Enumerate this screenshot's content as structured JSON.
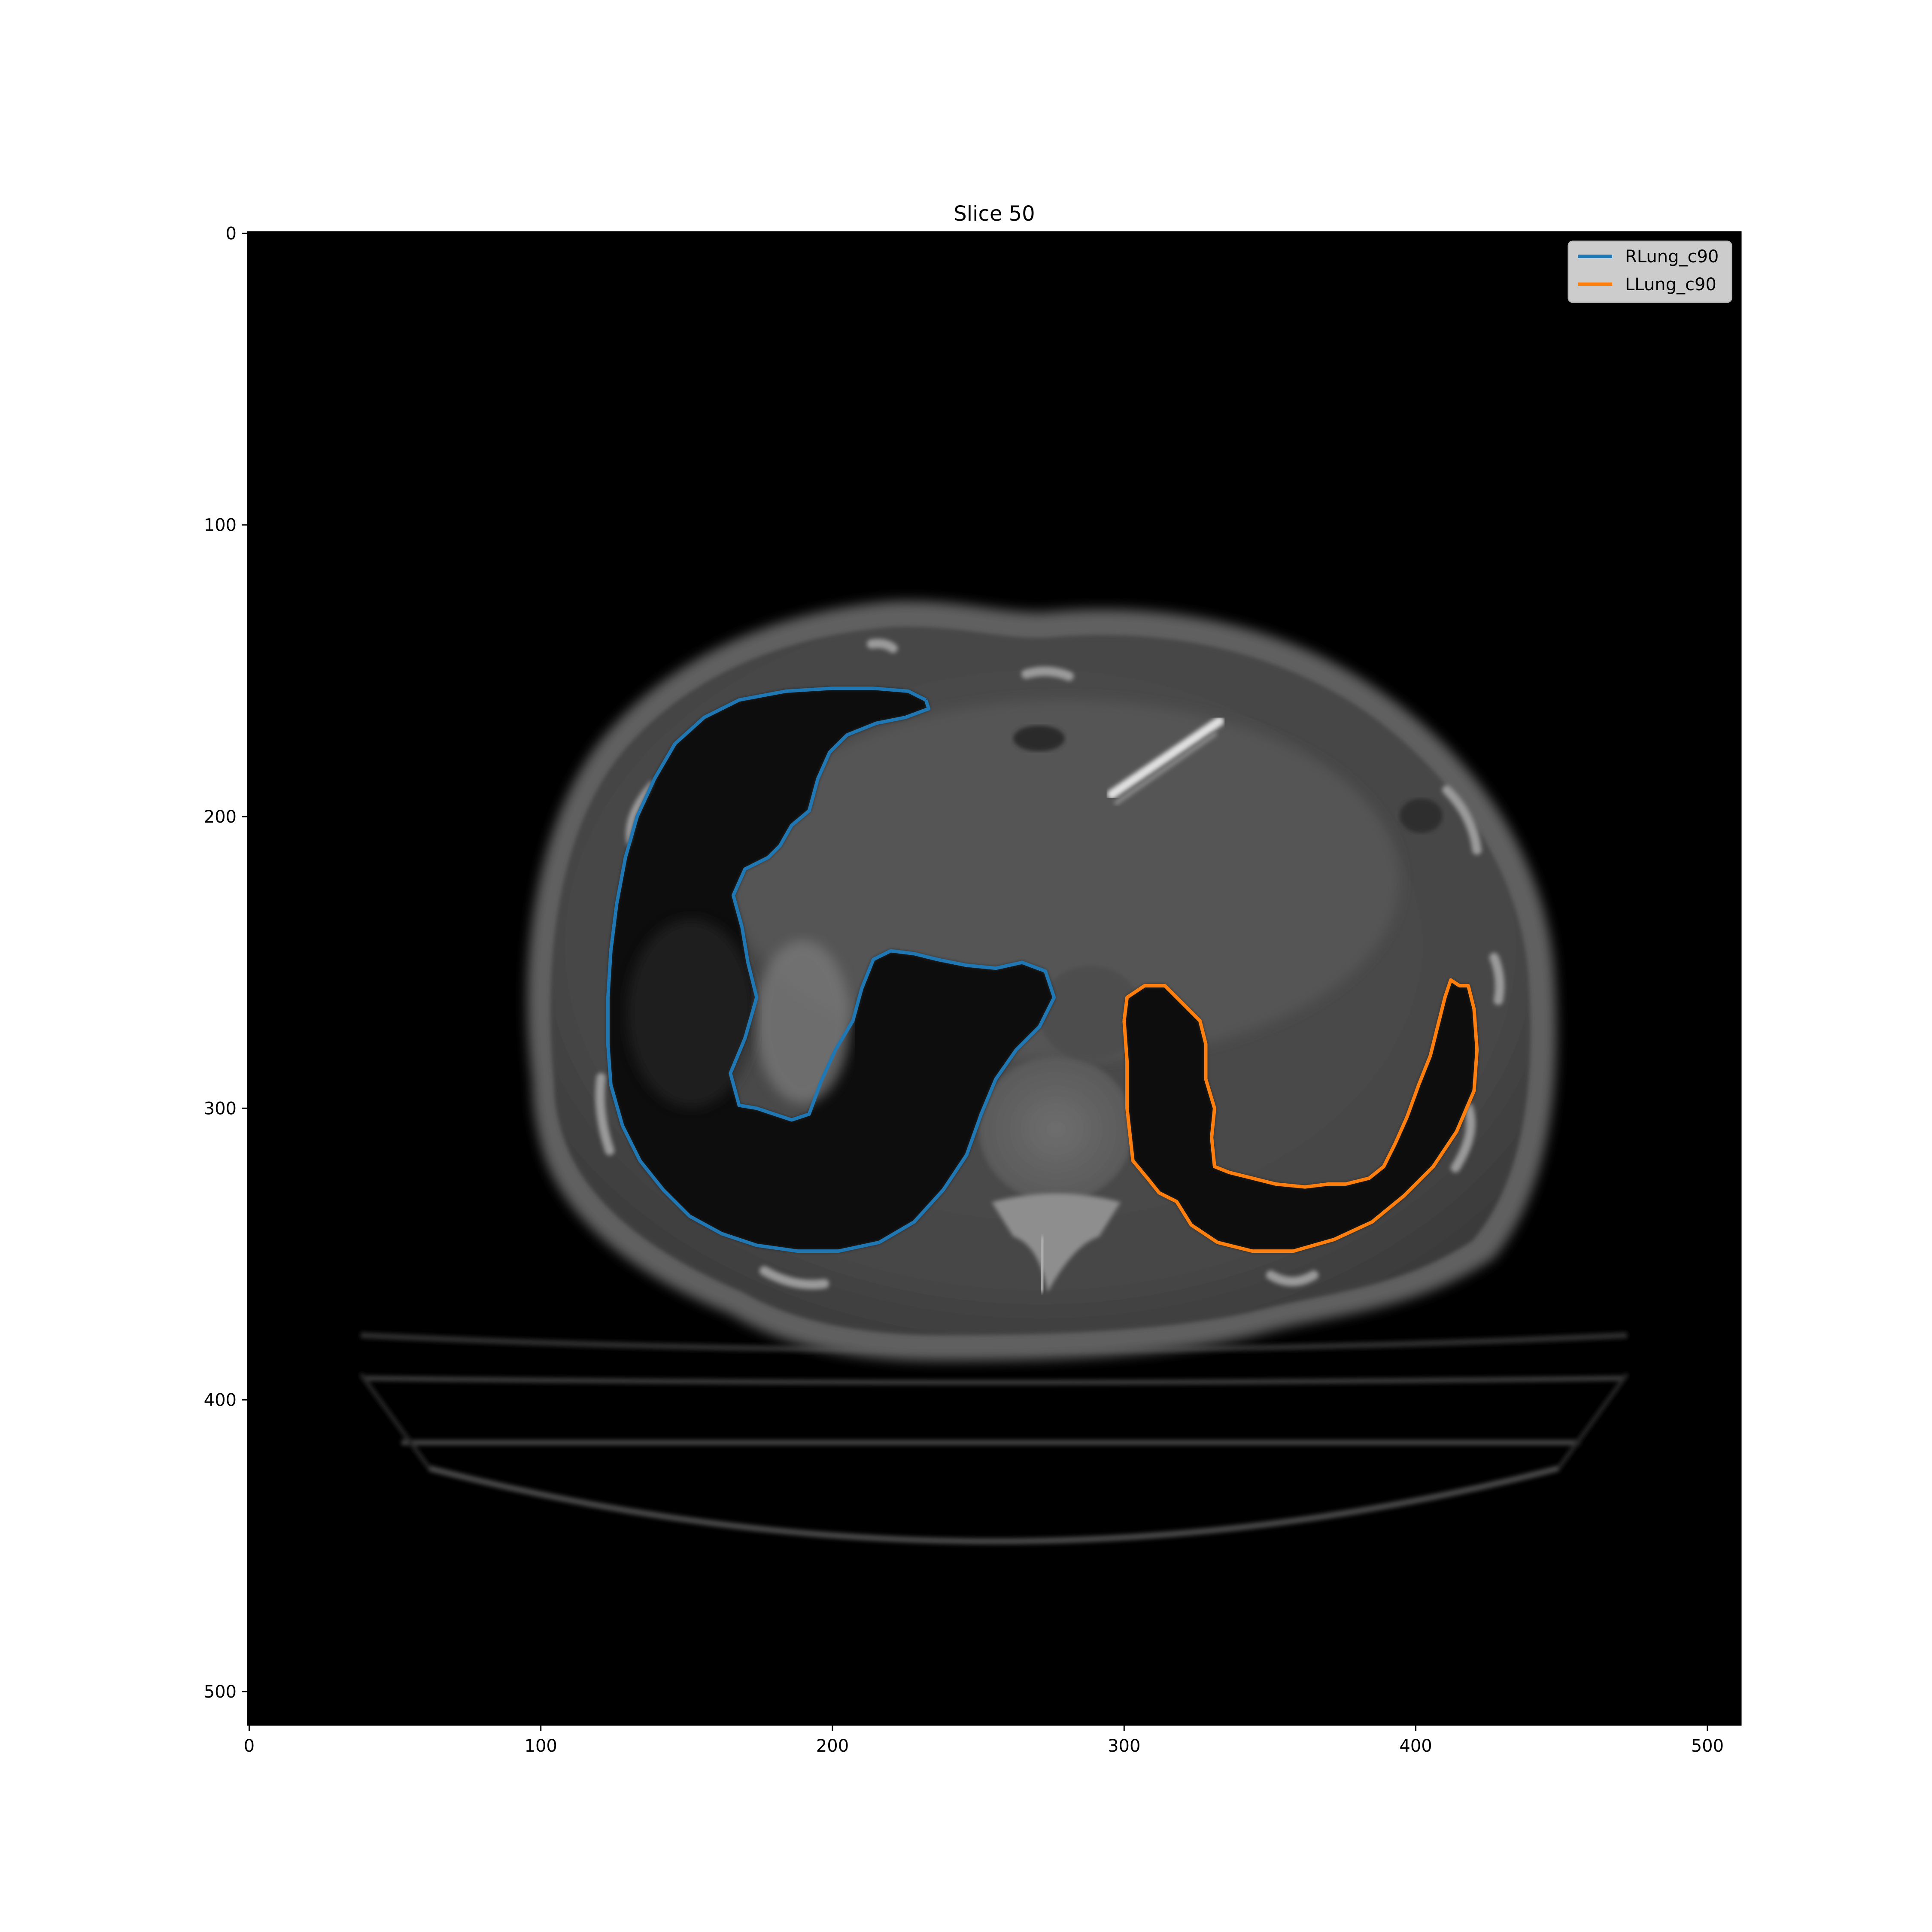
{
  "figure": {
    "title": "Slice 50",
    "image_size": 512,
    "x_ticks": [
      "0",
      "100",
      "200",
      "300",
      "400",
      "500"
    ],
    "y_ticks": [
      "0",
      "100",
      "200",
      "300",
      "400",
      "500"
    ],
    "x_tick_values": [
      0,
      100,
      200,
      300,
      400,
      500
    ],
    "y_tick_values": [
      0,
      100,
      200,
      300,
      400,
      500
    ]
  },
  "legend": {
    "placement": "upper right",
    "items": [
      {
        "label": "RLung_c90",
        "color": "#1f77b4"
      },
      {
        "label": "LLung_c90",
        "color": "#ff7f0e"
      }
    ]
  },
  "contours": {
    "RLung_c90": {
      "color": "#1f77b4",
      "points": [
        [
          232,
          160
        ],
        [
          226,
          157
        ],
        [
          214,
          156
        ],
        [
          200,
          156
        ],
        [
          184,
          157
        ],
        [
          168,
          160
        ],
        [
          156,
          166
        ],
        [
          146,
          175
        ],
        [
          139,
          187
        ],
        [
          133,
          200
        ],
        [
          129,
          214
        ],
        [
          126,
          230
        ],
        [
          124,
          246
        ],
        [
          123,
          262
        ],
        [
          123,
          278
        ],
        [
          124,
          292
        ],
        [
          128,
          306
        ],
        [
          134,
          318
        ],
        [
          142,
          328
        ],
        [
          151,
          337
        ],
        [
          162,
          343
        ],
        [
          174,
          347
        ],
        [
          188,
          349
        ],
        [
          202,
          349
        ],
        [
          216,
          346
        ],
        [
          228,
          339
        ],
        [
          238,
          328
        ],
        [
          246,
          316
        ],
        [
          251,
          302
        ],
        [
          256,
          290
        ],
        [
          263,
          280
        ],
        [
          271,
          272
        ],
        [
          276,
          262
        ],
        [
          273,
          253
        ],
        [
          265,
          250
        ],
        [
          256,
          252
        ],
        [
          246,
          251
        ],
        [
          236,
          249
        ],
        [
          228,
          247
        ],
        [
          220,
          246
        ],
        [
          214,
          249
        ],
        [
          210,
          259
        ],
        [
          207,
          270
        ],
        [
          201,
          280
        ],
        [
          196,
          291
        ],
        [
          192,
          302
        ],
        [
          186,
          304
        ],
        [
          180,
          302
        ],
        [
          174,
          300
        ],
        [
          168,
          299
        ],
        [
          165,
          288
        ],
        [
          170,
          276
        ],
        [
          174,
          262
        ],
        [
          171,
          250
        ],
        [
          169,
          238
        ],
        [
          166,
          227
        ],
        [
          170,
          218
        ],
        [
          178,
          214
        ],
        [
          182,
          210
        ],
        [
          186,
          203
        ],
        [
          192,
          198
        ],
        [
          195,
          187
        ],
        [
          199,
          178
        ],
        [
          205,
          172
        ],
        [
          215,
          168
        ],
        [
          225,
          166
        ],
        [
          233,
          163
        ],
        [
          232,
          160
        ]
      ]
    },
    "LLung_c90": {
      "color": "#ff7f0e",
      "points": [
        [
          300,
          270
        ],
        [
          301,
          262
        ],
        [
          307,
          258
        ],
        [
          314,
          258
        ],
        [
          320,
          264
        ],
        [
          326,
          270
        ],
        [
          328,
          278
        ],
        [
          328,
          290
        ],
        [
          331,
          300
        ],
        [
          330,
          310
        ],
        [
          331,
          320
        ],
        [
          336,
          322
        ],
        [
          344,
          324
        ],
        [
          352,
          326
        ],
        [
          362,
          327
        ],
        [
          370,
          326
        ],
        [
          376,
          326
        ],
        [
          384,
          324
        ],
        [
          389,
          320
        ],
        [
          393,
          312
        ],
        [
          397,
          303
        ],
        [
          401,
          292
        ],
        [
          405,
          282
        ],
        [
          408,
          270
        ],
        [
          410,
          262
        ],
        [
          412,
          256
        ],
        [
          415,
          258
        ],
        [
          418,
          258
        ],
        [
          420,
          266
        ],
        [
          421,
          280
        ],
        [
          420,
          294
        ],
        [
          414,
          308
        ],
        [
          406,
          320
        ],
        [
          396,
          330
        ],
        [
          385,
          339
        ],
        [
          372,
          345
        ],
        [
          358,
          349
        ],
        [
          344,
          349
        ],
        [
          332,
          346
        ],
        [
          323,
          340
        ],
        [
          318,
          332
        ],
        [
          312,
          329
        ],
        [
          308,
          324
        ],
        [
          303,
          318
        ],
        [
          301,
          300
        ],
        [
          301,
          284
        ],
        [
          300,
          270
        ]
      ]
    }
  }
}
